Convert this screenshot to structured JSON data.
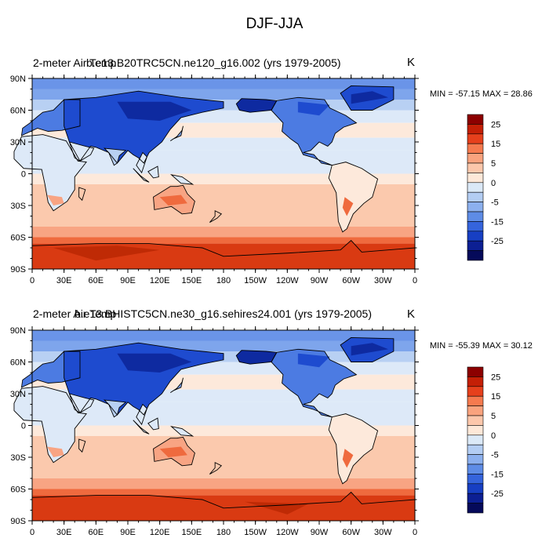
{
  "title": "DJF-JJA",
  "panels": [
    {
      "left_string": "2-meter Air Temp",
      "center_string": "b.e13.B20TRC5CN.ne120_g16.002 (yrs 1979-2005)",
      "units": "K",
      "min_max": "MIN = -57.15 MAX =  28.86"
    },
    {
      "left_string": "2-meter Air Temp",
      "center_string": "b.e13.BHISTC5CN.ne30_g16.sehires24.001 (yrs 1979-2005)",
      "units": "K",
      "min_max": "MIN = -55.39 MAX =  30.12"
    }
  ],
  "axes": {
    "lat_labels": [
      "90N",
      "60N",
      "30N",
      "0",
      "30S",
      "60S",
      "90S"
    ],
    "lon_labels": [
      "0",
      "30E",
      "60E",
      "90E",
      "120E",
      "150E",
      "180",
      "150W",
      "120W",
      "90W",
      "60W",
      "30W",
      "0"
    ]
  },
  "colorbar": {
    "labels": [
      "25",
      "15",
      "5",
      "0",
      "-5",
      "-15",
      "-25"
    ],
    "colors": [
      "#8c0000",
      "#c41f06",
      "#e6401c",
      "#f57a4f",
      "#f9a37e",
      "#fcc7ab",
      "#fde8d8",
      "#dbe9f7",
      "#b3cdf3",
      "#8cb0ee",
      "#5e8ce6",
      "#3564dc",
      "#173fc3",
      "#0c1f93",
      "#050a5a"
    ]
  },
  "palette": {
    "deep_red": "#b32400",
    "red": "#d93a12",
    "orange_red": "#ef6a3e",
    "salmon": "#f8a483",
    "peach": "#fbc9ad",
    "cream": "#fde9db",
    "pale_blue": "#dde9f8",
    "light_blue": "#b8d0f3",
    "mid_blue": "#7ea5ec",
    "blue": "#4c7be2",
    "deep_blue": "#1e4bcf",
    "navy": "#0e2aa0"
  }
}
